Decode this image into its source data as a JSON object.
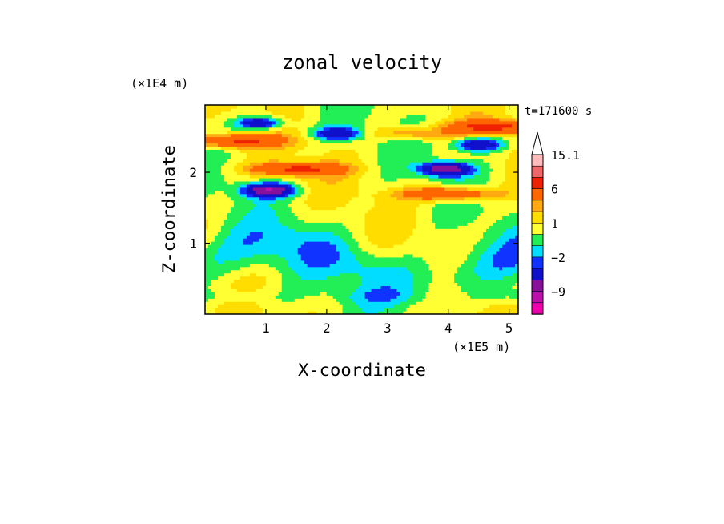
{
  "chart_data": {
    "type": "heatmap",
    "title": "zonal velocity",
    "xlabel": "X-coordinate",
    "ylabel": "Z-coordinate",
    "x_unit": "(×1E5 m)",
    "y_unit": "(×1E4 m)",
    "time_label": "t=171600 s",
    "xlim": [
      0,
      5.15
    ],
    "ylim": [
      0,
      2.95
    ],
    "x_ticks": [
      1,
      2,
      3,
      4,
      5
    ],
    "y_ticks": [
      1,
      2
    ],
    "colorbar": {
      "levels": [
        -15,
        -12,
        -9,
        -6,
        -3,
        -2,
        -1,
        0,
        1,
        2,
        3,
        6,
        9,
        12,
        15.1
      ],
      "colors": [
        "#ee00aa",
        "#bb11aa",
        "#881199",
        "#1111cc",
        "#1133ff",
        "#00ddff",
        "#22ee55",
        "#ffff33",
        "#ffdd00",
        "#ffaa11",
        "#ff6600",
        "#ee2200",
        "#ee6666",
        "#ffbbbb"
      ],
      "tick_labels": [
        "15.1",
        "6",
        "1",
        "−2",
        "−9"
      ],
      "extend_max": true
    },
    "features": [
      {
        "desc": "negative jet",
        "x": 1.05,
        "z": 1.75,
        "value": -9
      },
      {
        "desc": "negative jet",
        "x": 3.95,
        "z": 2.05,
        "value": -9
      },
      {
        "desc": "negative core",
        "x": 2.2,
        "z": 2.55,
        "value": -6
      },
      {
        "desc": "negative core",
        "x": 4.5,
        "z": 2.4,
        "value": -6
      },
      {
        "desc": "negative core",
        "x": 0.9,
        "z": 2.7,
        "value": -6
      },
      {
        "desc": "positive band",
        "x": 1.5,
        "z": 2.05,
        "value": 6
      },
      {
        "desc": "positive band",
        "x": 4.0,
        "z": 1.7,
        "value": 6
      },
      {
        "desc": "positive band",
        "x": 0.5,
        "z": 2.45,
        "value": 6
      },
      {
        "desc": "positive band",
        "x": 3.4,
        "z": 2.55,
        "value": 3
      },
      {
        "desc": "positive band",
        "x": 4.8,
        "z": 2.65,
        "value": 6
      }
    ]
  }
}
